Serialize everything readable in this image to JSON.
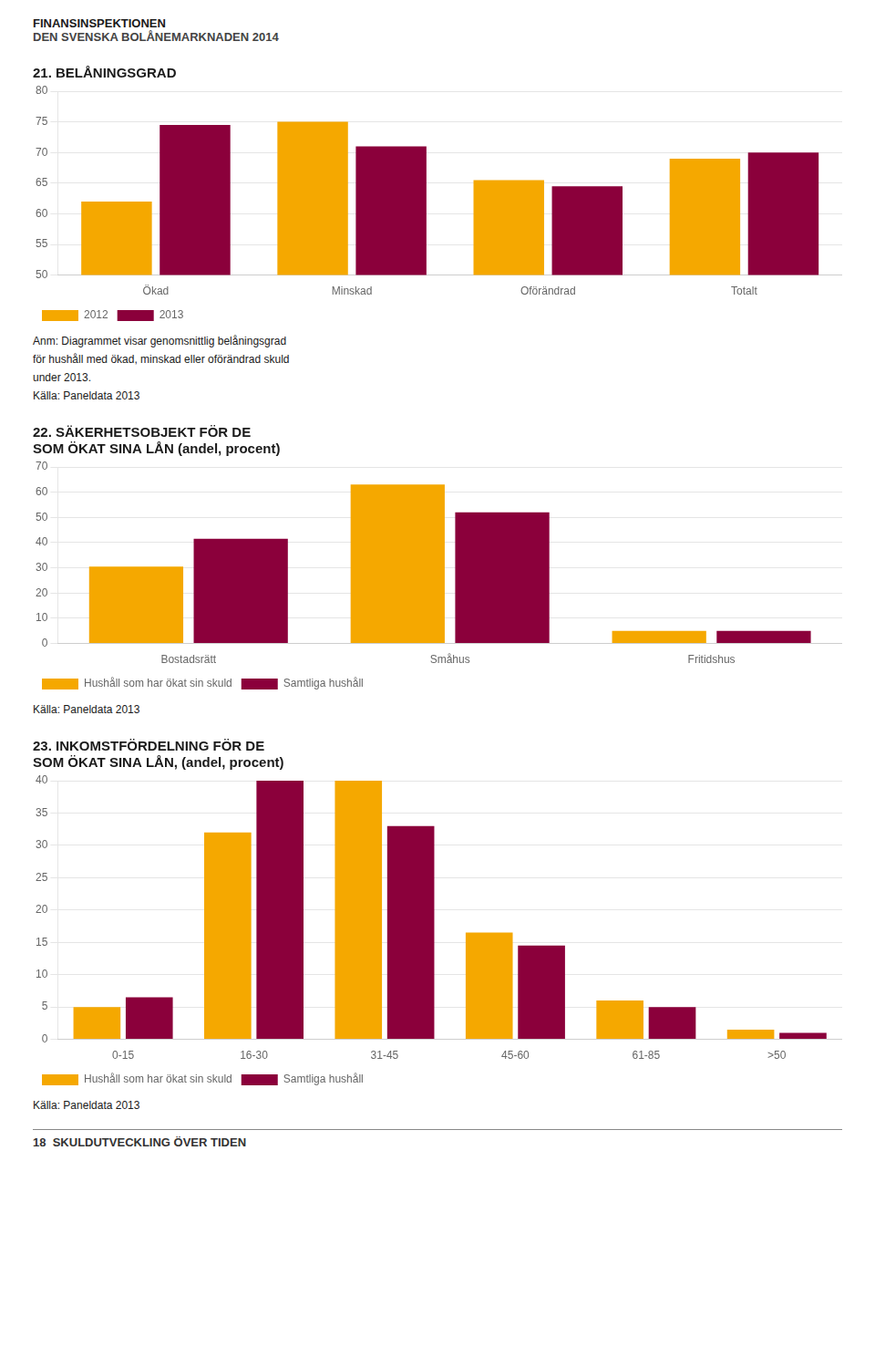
{
  "title": "FINANSINSPEKTIONEN",
  "subtitle": "DEN SVENSKA BOLÅNEMARKNADEN 2014",
  "annotations": [
    "18  SKULDUTVECKLING ÖVER TIDEN"
  ],
  "chart_data": [
    {
      "type": "bar",
      "title": "21. BELÅNINGSGRAD",
      "categories": [
        "Ökad",
        "Minskad",
        "Oförändrad",
        "Totalt"
      ],
      "series": [
        {
          "name": "2012",
          "color": "#F5A800",
          "values": [
            62,
            75,
            65.5,
            69
          ]
        },
        {
          "name": "2013",
          "color": "#8B003B",
          "values": [
            74.5,
            71,
            64.5,
            70
          ]
        }
      ],
      "ylim": [
        50,
        80
      ],
      "yticks": [
        50,
        55,
        60,
        65,
        70,
        75,
        80
      ],
      "grid": true,
      "legend": "bottom",
      "annotations": [
        "Anm: Diagrammet visar genomsnittlig belåningsgrad",
        "för hushåll med ökad, minskad eller oförändrad skuld",
        "under 2013.",
        "Källa: Paneldata 2013"
      ]
    },
    {
      "type": "bar",
      "title": [
        "22. SÄKERHETSOBJEKT FÖR DE",
        "SOM ÖKAT SINA LÅN (andel, procent)"
      ],
      "categories": [
        "Bostadsrätt",
        "Småhus",
        "Fritidshus"
      ],
      "series": [
        {
          "name": "Hushåll som har ökat sin skuld",
          "color": "#F5A800",
          "values": [
            30.5,
            63,
            5
          ]
        },
        {
          "name": "Samtliga hushåll",
          "color": "#8B003B",
          "values": [
            41.5,
            52,
            5
          ]
        }
      ],
      "ylim": [
        0,
        70
      ],
      "yticks": [
        0,
        10,
        20,
        30,
        40,
        50,
        60,
        70
      ],
      "grid": true,
      "legend": "bottom",
      "annotations": [
        "Källa: Paneldata 2013"
      ]
    },
    {
      "type": "bar",
      "title": [
        "23. INKOMSTFÖRDELNING FÖR DE",
        "SOM ÖKAT SINA LÅN, (andel, procent)"
      ],
      "categories": [
        "0-15",
        "16-30",
        "31-45",
        "45-60",
        "61-85",
        ">50"
      ],
      "series": [
        {
          "name": "Hushåll som har ökat sin skuld",
          "color": "#F5A800",
          "values": [
            5,
            32,
            40,
            16.5,
            6,
            1.5
          ]
        },
        {
          "name": "Samtliga hushåll",
          "color": "#8B003B",
          "values": [
            6.5,
            40,
            33,
            14.5,
            5,
            1
          ]
        }
      ],
      "ylim": [
        0,
        40
      ],
      "yticks": [
        0,
        5,
        10,
        15,
        20,
        25,
        30,
        35,
        40
      ],
      "grid": true,
      "legend": "bottom",
      "annotations": [
        "Källa: Paneldata 2013"
      ]
    }
  ]
}
